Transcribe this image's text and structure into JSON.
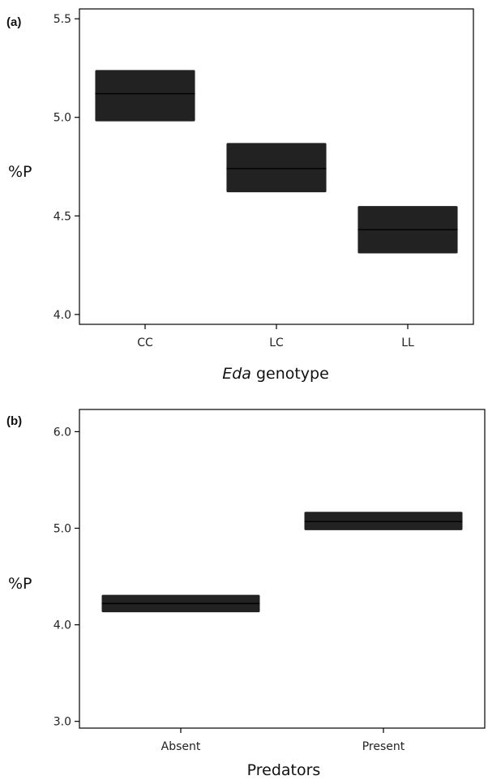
{
  "chart_data": [
    {
      "type": "crossbar",
      "panel_label": "(a)",
      "categories": [
        "CC",
        "LC",
        "LL"
      ],
      "values": [
        5.12,
        4.74,
        4.43
      ],
      "lower": [
        4.98,
        4.62,
        4.31
      ],
      "upper": [
        5.24,
        4.87,
        4.55
      ],
      "ylabel": "%P",
      "xlabel_italic": "Eda",
      "xlabel_rest": " genotype",
      "ylim": [
        3.95,
        5.55
      ],
      "yticks": [
        4.0,
        4.5,
        5.0,
        5.5
      ],
      "ytick_labels": [
        "4.0",
        "4.5",
        "5.0",
        "5.5"
      ],
      "grid": false
    },
    {
      "type": "crossbar",
      "panel_label": "(b)",
      "categories": [
        "Absent",
        "Present"
      ],
      "values": [
        4.22,
        5.07
      ],
      "lower": [
        4.13,
        4.98
      ],
      "upper": [
        4.31,
        5.17
      ],
      "ylabel": "%P",
      "xlabel": "Predators",
      "ylim": [
        2.93,
        6.23
      ],
      "yticks": [
        3.0,
        4.0,
        5.0,
        6.0
      ],
      "ytick_labels": [
        "3.0",
        "4.0",
        "5.0",
        "6.0"
      ],
      "grid": false
    }
  ],
  "colors": {
    "bar": "#222222",
    "median": "#000000",
    "axis": "#000000"
  }
}
